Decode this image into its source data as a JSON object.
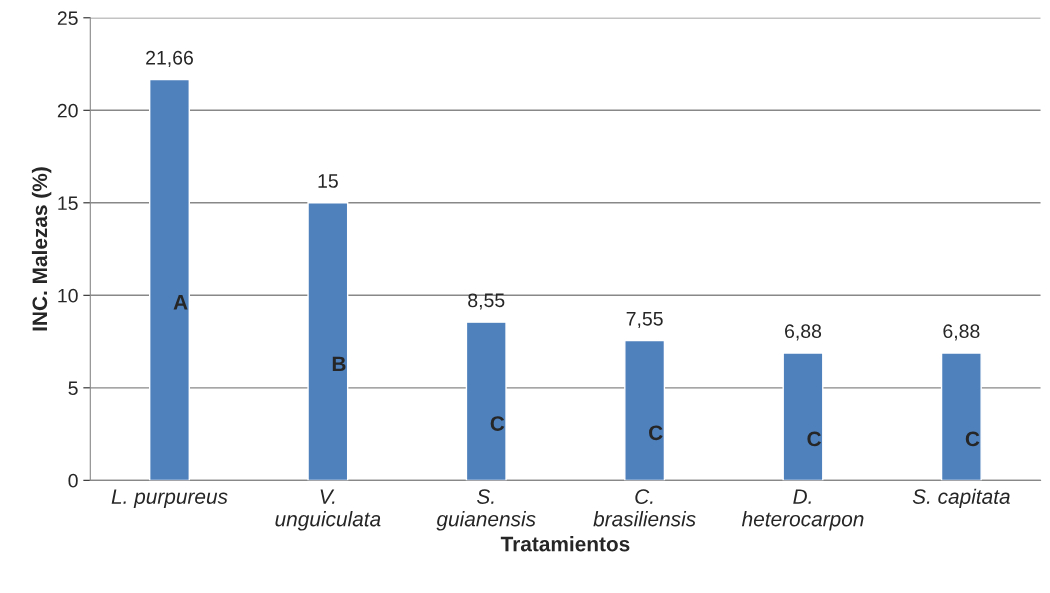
{
  "chart_data": {
    "type": "bar",
    "xlabel": "Tratamientos",
    "ylabel": "INC. Malezas (%)",
    "categories": [
      "L. purpureus",
      "V. unguiculata",
      "S. guianensis",
      "C. brasiliensis",
      "D. heterocarpon",
      "S. capitata"
    ],
    "values": [
      21.66,
      15,
      8.55,
      7.55,
      6.88,
      6.88
    ],
    "value_labels": [
      "21,66",
      "15",
      "8,55",
      "7,55",
      "6,88",
      "6,88"
    ],
    "color": "#4f81bd",
    "ylim": [
      0,
      25
    ],
    "yticks": [
      0,
      5,
      10,
      15,
      20,
      25
    ],
    "grid": "y",
    "annotations": [
      "A",
      "B",
      "C",
      "C",
      "C",
      "C"
    ]
  }
}
